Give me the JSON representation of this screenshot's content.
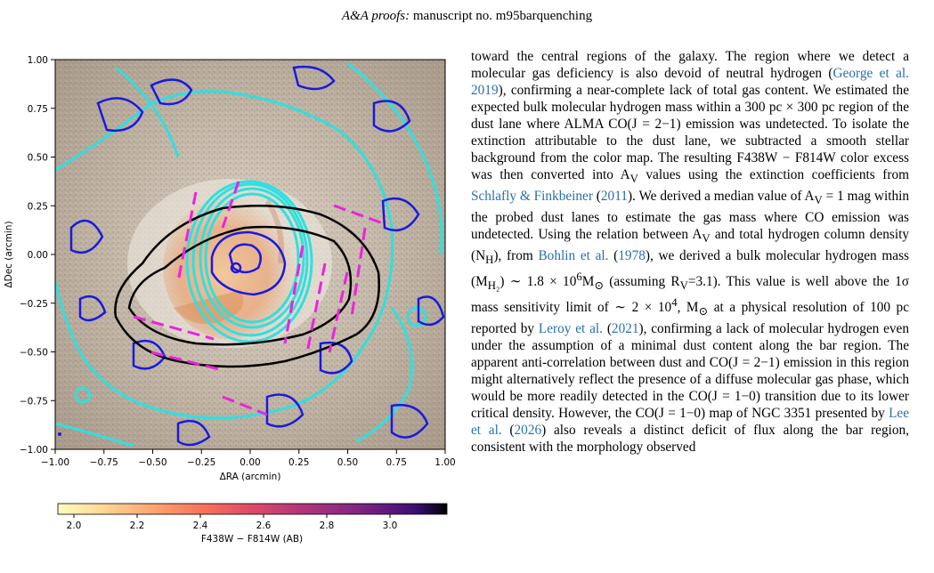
{
  "header": {
    "journal": "A&A proofs:",
    "manuscript": "manuscript no. m95barquenching"
  },
  "figure": {
    "x_label": "ΔRA (arcmin)",
    "y_label": "ΔDec (arcmin)",
    "x_ticks": [
      "−1.00",
      "−0.75",
      "−0.50",
      "−0.25",
      "0.00",
      "0.25",
      "0.50",
      "0.75",
      "1.00"
    ],
    "y_ticks": [
      "1.00",
      "0.75",
      "0.50",
      "0.25",
      "0.00",
      "−0.25",
      "−0.50",
      "−0.75",
      "−1.00"
    ],
    "colorbar_label": "F438W − F814W (AB)",
    "colorbar_ticks": [
      "2.0",
      "2.2",
      "2.4",
      "2.6",
      "2.8",
      "3.0"
    ],
    "colormap": [
      "#fcfdbf",
      "#fdb96a",
      "#f6705c",
      "#de4968",
      "#b5367a",
      "#8c2981",
      "#641a80",
      "#3b0f70",
      "#1c1040",
      "#000004"
    ],
    "contour_colors": {
      "cyan": "#2fe0e0",
      "blue": "#1a1adf",
      "black": "#000000",
      "magenta": "#ee22dd"
    }
  },
  "text": {
    "s1": "toward the central regions of the galaxy. The region where we detect a molecular gas deficiency is also devoid of neutral hydrogen (",
    "r1": "George et al. 2019",
    "s2": "), confirming a near-complete lack of total gas content. We estimated the expected bulk molecular hydrogen mass within a 300 pc × 300 pc region of the dust lane where ALMA CO(J = 2−1) emission was undetected. To isolate the extinction attributable to the dust lane, we subtracted a smooth stellar background from the color map. The resulting F438W − F814W color excess was then converted into A",
    "s2sub": "V",
    "s3": " values using the extinction coefficients from ",
    "r2": "Schlafly & Finkbeiner",
    "s4": " (",
    "r2y": "2011",
    "s5": "). We derived a median value of A",
    "s5sub": "V",
    "s6": " = 1 mag within the probed dust lanes to estimate the gas mass where CO emission was undetected. Using the relation between A",
    "s6sub": "V",
    "s7": " and total hydrogen column density (N",
    "s7sub": "H",
    "s8": "), from ",
    "r3": "Bohlin et al.",
    "s9": " (",
    "r3y": "1978",
    "s10": "), we derived a bulk molecular hydrogen mass (M",
    "s10sub": "H₂",
    "s11": ") ∼ 1.8 × 10",
    "s11sup": "6",
    "s12": "M",
    "s12sub": "⊙",
    "s13": " (assuming R",
    "s13sub": "V",
    "s14": "=3.1). This value is well above the 1σ mass sensitivity limit of ∼ 2 × 10",
    "s14sup": "4",
    "s15": ", M",
    "s15sub": "⊙",
    "s16": " at a physical resolution of 100 pc reported by ",
    "r4": "Leroy et al.",
    "s17": " (",
    "r4y": "2021",
    "s18": "), confirming a lack of molecular hydrogen even under the assumption of a minimal dust content along the bar region. The apparent anti-correlation between dust and CO(J = 2−1) emission in this region might alternatively reflect the presence of a diffuse molecular gas phase, which would be more readily detected in the CO(J = 1−0) transition due to its lower critical density. However, the CO(J = 1−0) map of NGC 3351 presented by ",
    "r5": "Lee et al.",
    "s19": " (",
    "r5y": "2026",
    "s20": ") also reveals a distinct deficit of flux along the bar region, consistent with the morphology observed"
  }
}
